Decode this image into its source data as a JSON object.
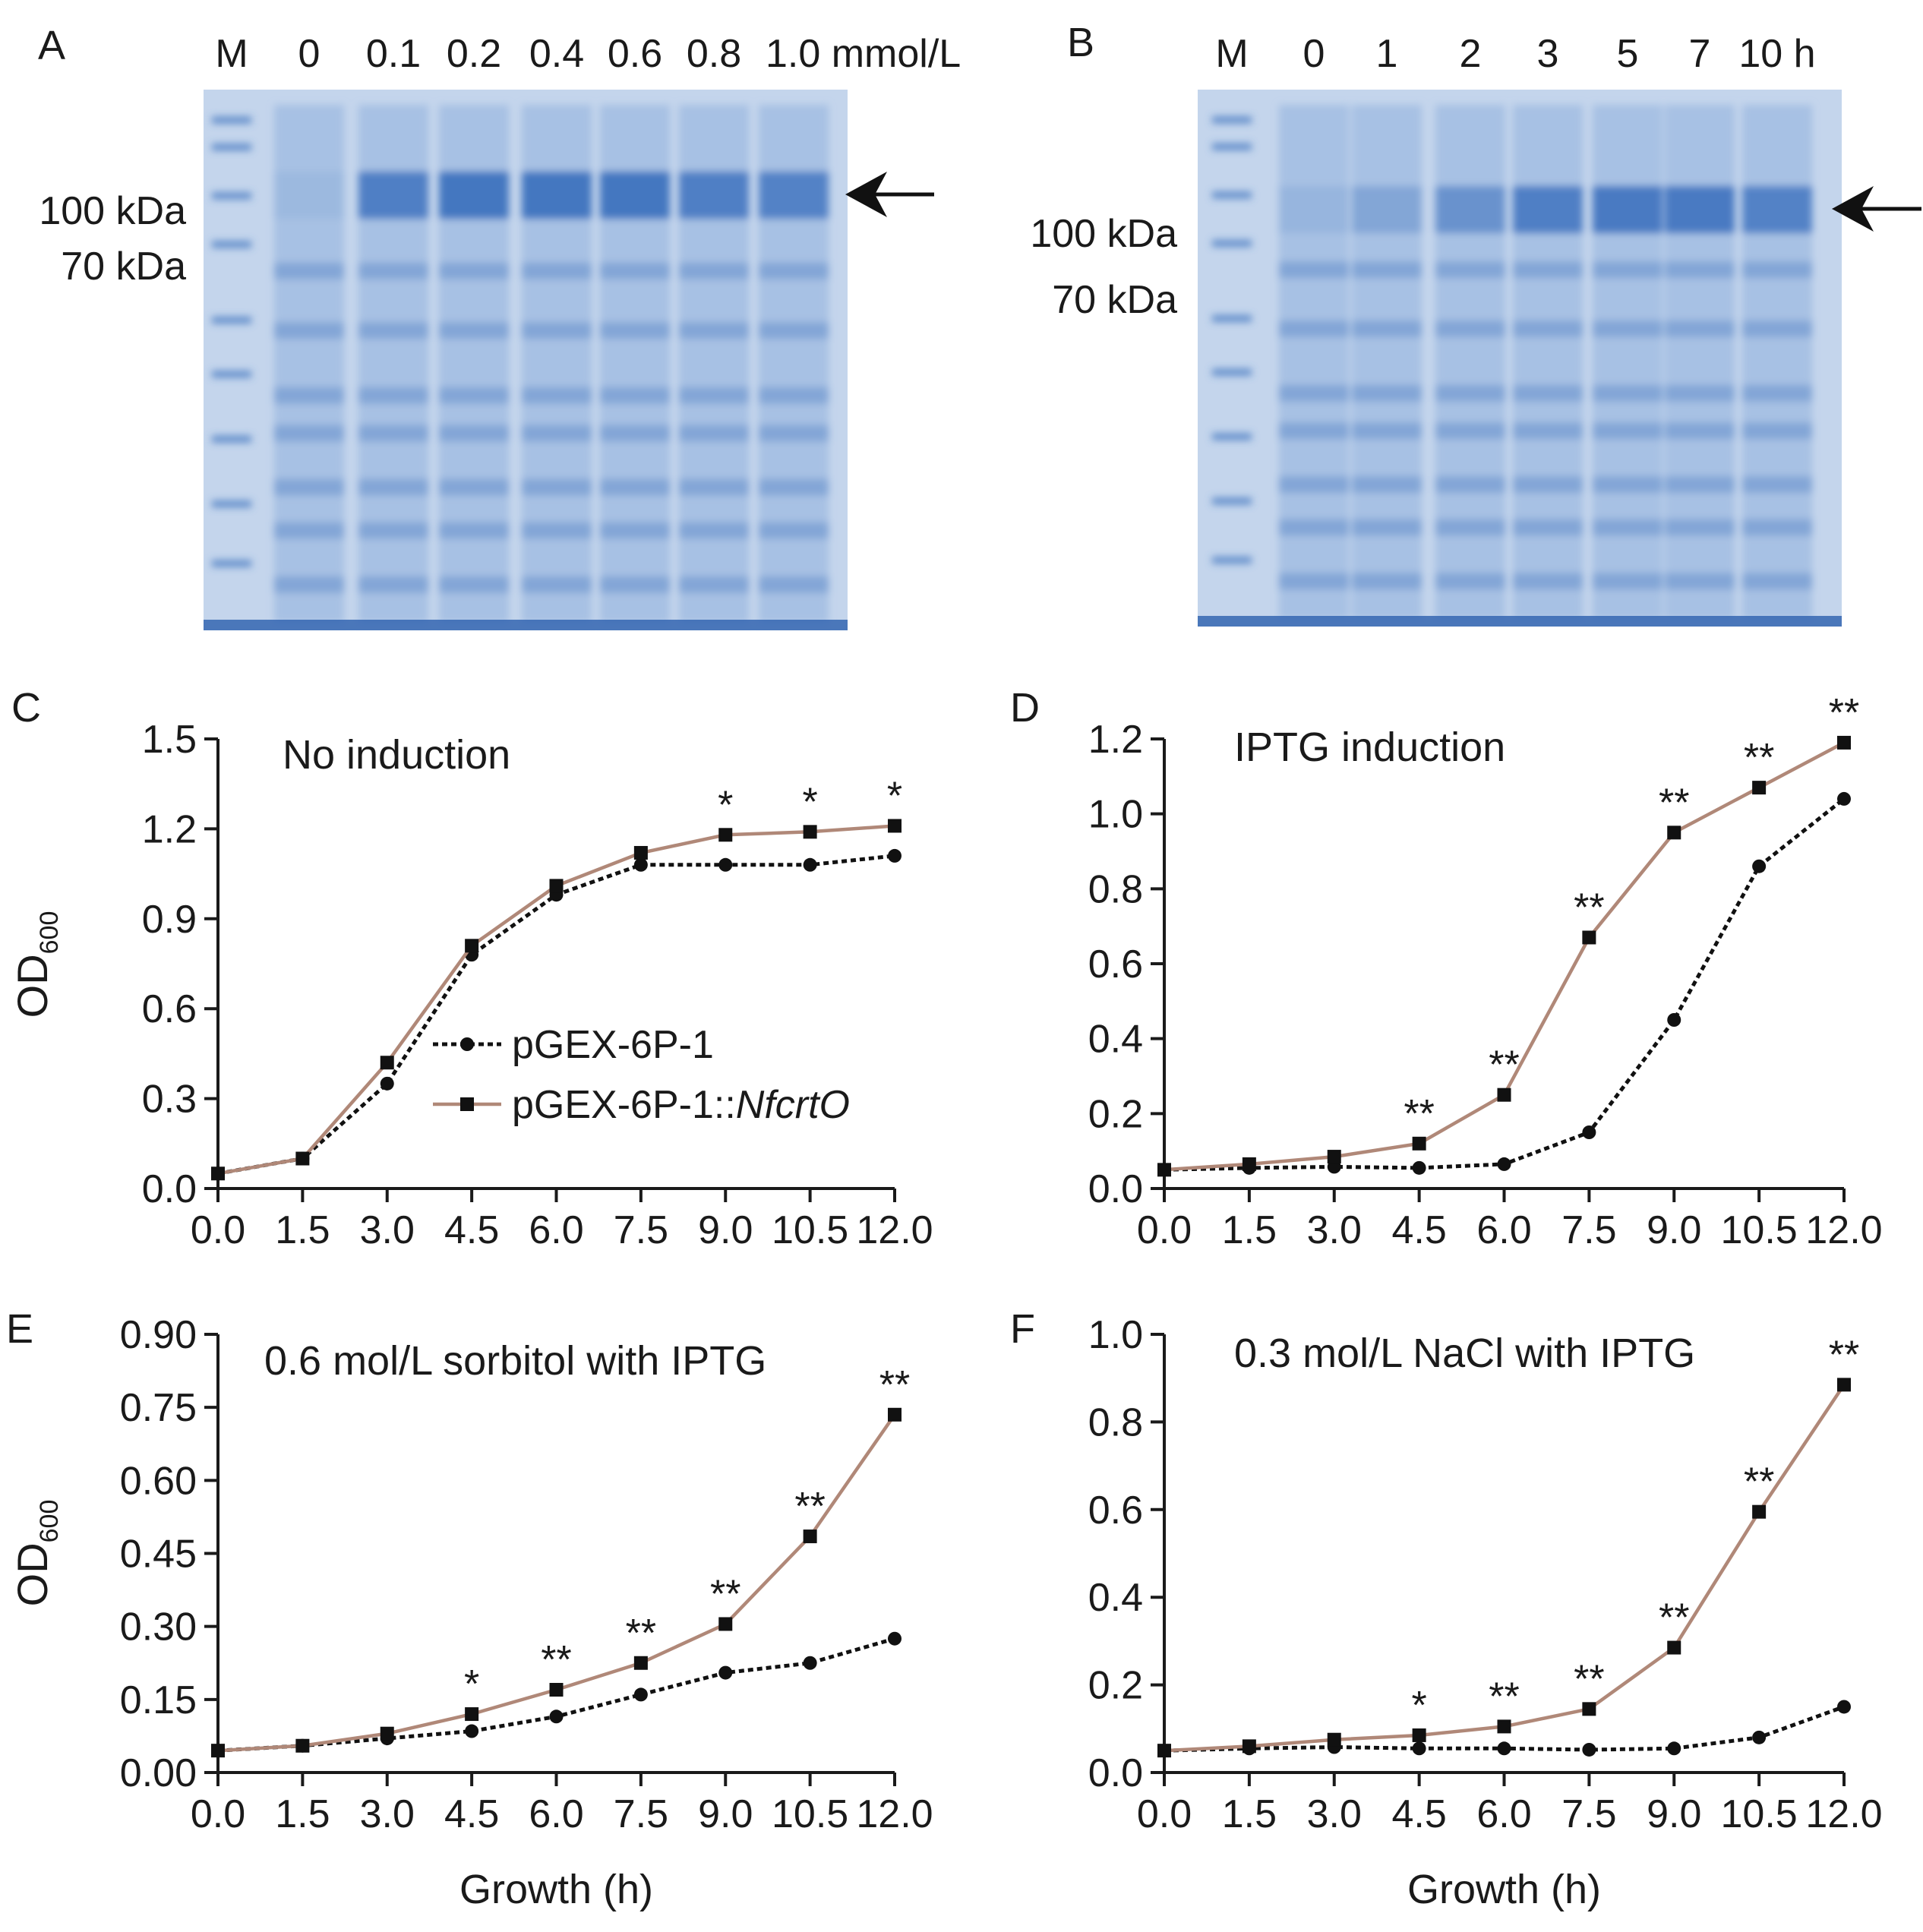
{
  "colors": {
    "control": "#111111",
    "nfcrto": "#b08878",
    "gel_bg": "#c4d5ec",
    "gel_band": "#3f73bf"
  },
  "gels": [
    {
      "label": "A",
      "lanes": [
        "M",
        "0",
        "0.1",
        "0.2",
        "0.4",
        "0.6",
        "0.8",
        "1.0 mmol/L"
      ],
      "markers": [
        "100 kDa",
        "70 kDa"
      ],
      "target_intensity": [
        0.1,
        0.85,
        0.95,
        0.95,
        0.95,
        0.85,
        0.8
      ]
    },
    {
      "label": "B",
      "lanes": [
        "M",
        "0",
        "1",
        "2",
        "3",
        "5",
        "7",
        "10 h"
      ],
      "markers": [
        "100 kDa",
        "70 kDa"
      ],
      "target_intensity": [
        0.15,
        0.35,
        0.6,
        0.85,
        0.9,
        0.9,
        0.8
      ]
    }
  ],
  "chart_data": [
    {
      "panel": "C",
      "type": "line",
      "title": "No induction",
      "xlabel": "",
      "ylabel": "OD",
      "ylabel_sub": "600",
      "x": [
        0.0,
        1.5,
        3.0,
        4.5,
        6.0,
        7.5,
        9.0,
        10.5,
        12.0
      ],
      "x_ticks": [
        "0.0",
        "1.5",
        "3.0",
        "4.5",
        "6.0",
        "7.5",
        "9.0",
        "10.5",
        "12.0"
      ],
      "xlim": [
        0,
        12
      ],
      "ylim": [
        0,
        1.5
      ],
      "y_ticks": [
        "0.0",
        "0.3",
        "0.6",
        "0.9",
        "1.2",
        "1.5"
      ],
      "y_tick_values": [
        0,
        0.3,
        0.6,
        0.9,
        1.2,
        1.5
      ],
      "series": [
        {
          "name": "pGEX-6P-1",
          "values": [
            0.05,
            0.1,
            0.35,
            0.78,
            0.98,
            1.08,
            1.08,
            1.08,
            1.11
          ]
        },
        {
          "name": "pGEX-6P-1::NfcrtO",
          "values": [
            0.05,
            0.1,
            0.42,
            0.81,
            1.01,
            1.12,
            1.18,
            1.19,
            1.21
          ]
        }
      ],
      "annotations": [
        {
          "x": 9.0,
          "text": "*"
        },
        {
          "x": 10.5,
          "text": "*"
        },
        {
          "x": 12.0,
          "text": "*"
        }
      ],
      "legend": {
        "entries": [
          {
            "prefix": "pGEX-6P-1",
            "italic": ""
          },
          {
            "prefix": "pGEX-6P-1::",
            "italic": "NfcrtO"
          }
        ]
      }
    },
    {
      "panel": "D",
      "type": "line",
      "title": "IPTG induction",
      "xlabel": "",
      "ylabel": "",
      "ylabel_sub": "",
      "x": [
        0.0,
        1.5,
        3.0,
        4.5,
        6.0,
        7.5,
        9.0,
        10.5,
        12.0
      ],
      "x_ticks": [
        "0.0",
        "1.5",
        "3.0",
        "4.5",
        "6.0",
        "7.5",
        "9.0",
        "10.5",
        "12.0"
      ],
      "xlim": [
        0,
        12
      ],
      "ylim": [
        0,
        1.2
      ],
      "y_ticks": [
        "0.0",
        "0.2",
        "0.4",
        "0.6",
        "0.8",
        "1.0",
        "1.2"
      ],
      "y_tick_values": [
        0,
        0.2,
        0.4,
        0.6,
        0.8,
        1.0,
        1.2
      ],
      "series": [
        {
          "name": "pGEX-6P-1",
          "values": [
            0.05,
            0.055,
            0.058,
            0.055,
            0.065,
            0.15,
            0.45,
            0.86,
            1.04
          ]
        },
        {
          "name": "pGEX-6P-1::NfcrtO",
          "values": [
            0.05,
            0.065,
            0.085,
            0.12,
            0.25,
            0.67,
            0.95,
            1.07,
            1.19
          ]
        }
      ],
      "annotations": [
        {
          "x": 4.5,
          "text": "**"
        },
        {
          "x": 6.0,
          "text": "**"
        },
        {
          "x": 7.5,
          "text": "**"
        },
        {
          "x": 9.0,
          "text": "**"
        },
        {
          "x": 10.5,
          "text": "**"
        },
        {
          "x": 12.0,
          "text": "**"
        }
      ]
    },
    {
      "panel": "E",
      "type": "line",
      "title": "0.6 mol/L sorbitol with IPTG",
      "xlabel": "Growth (h)",
      "ylabel": "OD",
      "ylabel_sub": "600",
      "x": [
        0.0,
        1.5,
        3.0,
        4.5,
        6.0,
        7.5,
        9.0,
        10.5,
        12.0
      ],
      "x_ticks": [
        "0.0",
        "1.5",
        "3.0",
        "4.5",
        "6.0",
        "7.5",
        "9.0",
        "10.5",
        "12.0"
      ],
      "xlim": [
        0,
        12
      ],
      "ylim": [
        0,
        0.9
      ],
      "y_ticks": [
        "0.00",
        "0.15",
        "0.30",
        "0.45",
        "0.60",
        "0.75",
        "0.90"
      ],
      "y_tick_values": [
        0,
        0.15,
        0.3,
        0.45,
        0.6,
        0.75,
        0.9
      ],
      "series": [
        {
          "name": "pGEX-6P-1",
          "values": [
            0.045,
            0.055,
            0.07,
            0.085,
            0.115,
            0.16,
            0.205,
            0.225,
            0.275
          ]
        },
        {
          "name": "pGEX-6P-1::NfcrtO",
          "values": [
            0.045,
            0.055,
            0.08,
            0.12,
            0.17,
            0.225,
            0.305,
            0.485,
            0.735
          ]
        }
      ],
      "annotations": [
        {
          "x": 4.5,
          "text": "*"
        },
        {
          "x": 6.0,
          "text": "**"
        },
        {
          "x": 7.5,
          "text": "**"
        },
        {
          "x": 9.0,
          "text": "**"
        },
        {
          "x": 10.5,
          "text": "**"
        },
        {
          "x": 12.0,
          "text": "**"
        }
      ]
    },
    {
      "panel": "F",
      "type": "line",
      "title": "0.3 mol/L NaCl with IPTG",
      "xlabel": "Growth (h)",
      "ylabel": "",
      "ylabel_sub": "",
      "x": [
        0.0,
        1.5,
        3.0,
        4.5,
        6.0,
        7.5,
        9.0,
        10.5,
        12.0
      ],
      "x_ticks": [
        "0.0",
        "1.5",
        "3.0",
        "4.5",
        "6.0",
        "7.5",
        "9.0",
        "10.5",
        "12.0"
      ],
      "xlim": [
        0,
        12
      ],
      "ylim": [
        0,
        1.0
      ],
      "y_ticks": [
        "0.0",
        "0.2",
        "0.4",
        "0.6",
        "0.8",
        "1.0"
      ],
      "y_tick_values": [
        0,
        0.2,
        0.4,
        0.6,
        0.8,
        1.0
      ],
      "series": [
        {
          "name": "pGEX-6P-1",
          "values": [
            0.05,
            0.055,
            0.058,
            0.055,
            0.055,
            0.052,
            0.055,
            0.08,
            0.15
          ]
        },
        {
          "name": "pGEX-6P-1::NfcrtO",
          "values": [
            0.05,
            0.06,
            0.075,
            0.085,
            0.105,
            0.145,
            0.285,
            0.595,
            0.885
          ]
        }
      ],
      "annotations": [
        {
          "x": 4.5,
          "text": "*"
        },
        {
          "x": 6.0,
          "text": "**"
        },
        {
          "x": 7.5,
          "text": "**"
        },
        {
          "x": 9.0,
          "text": "**"
        },
        {
          "x": 10.5,
          "text": "**"
        },
        {
          "x": 12.0,
          "text": "**"
        }
      ]
    }
  ]
}
